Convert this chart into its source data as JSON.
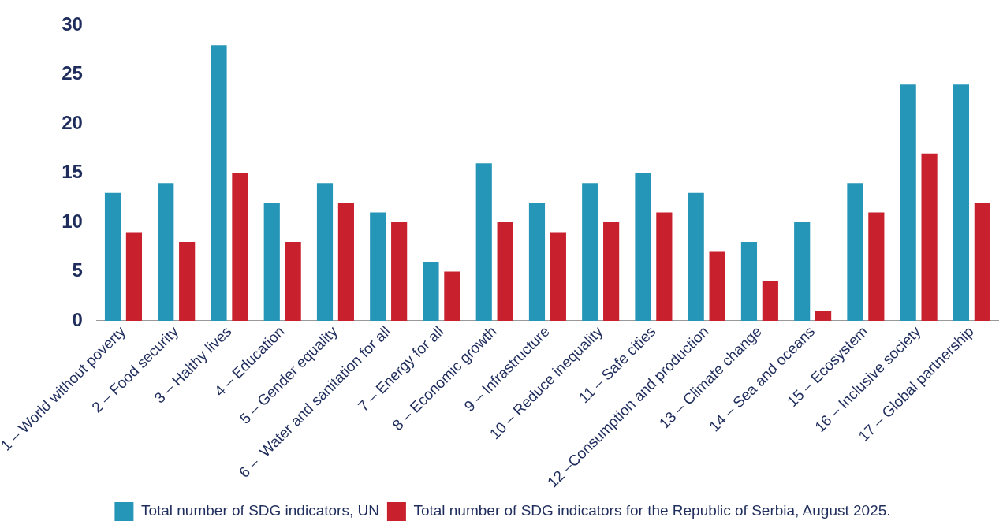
{
  "chart_data": {
    "type": "bar",
    "categories": [
      "1 – World without poverty",
      "2 – Food security",
      "3 – Halthy lives",
      "4 – Education",
      "5 – Gender equality",
      "6 –  Water and sanitation for all",
      "7 – Energy for all",
      "8 – Economic growth",
      "9 – Infrastructure",
      "10 – Reduce inequality",
      "11 – Safe cities",
      "12 –Consumption and production",
      "13 – Climate change",
      "14 – Sea and oceans",
      "15 – Ecosystem",
      "16 – Inclusive society",
      "17 – Global partnership"
    ],
    "series": [
      {
        "name": "Total number of SDG indicators, UN",
        "color": "#2596b8",
        "values": [
          13,
          14,
          28,
          12,
          14,
          11,
          6,
          16,
          12,
          14,
          15,
          13,
          8,
          10,
          14,
          24,
          24
        ]
      },
      {
        "name": "Total number of SDG indicators for the Republic of Serbia, August 2025.",
        "color": "#c8202c",
        "values": [
          9,
          8,
          15,
          8,
          12,
          10,
          5,
          10,
          9,
          10,
          11,
          7,
          4,
          1,
          11,
          17,
          12
        ]
      }
    ],
    "ylim": [
      0,
      30
    ],
    "yticks": [
      0,
      5,
      10,
      15,
      20,
      25,
      30
    ],
    "grid": false,
    "legend": "bottom"
  }
}
